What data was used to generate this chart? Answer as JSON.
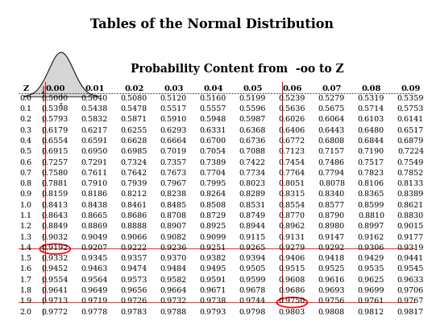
{
  "title": "Tables of the Normal Distribution",
  "subtitle": "Probability Content from  -oo to Z",
  "z_rows": [
    0.0,
    0.1,
    0.2,
    0.3,
    0.4,
    0.5,
    0.6,
    0.7,
    0.8,
    0.9,
    1.0,
    1.1,
    1.2,
    1.3,
    1.4,
    1.5,
    1.6,
    1.7,
    1.8,
    1.9,
    2.0
  ],
  "z_cols": [
    "0.00",
    "0.01",
    "0.02",
    "0.03",
    "0.04",
    "0.05",
    "0.06",
    "0.07",
    "0.08",
    "0.09"
  ],
  "table_values": [
    [
      "0.5000",
      "0.5040",
      "0.5080",
      "0.5120",
      "0.5160",
      "0.5199",
      "0.5239",
      "0.5279",
      "0.5319",
      "0.5359"
    ],
    [
      "0.5398",
      "0.5438",
      "0.5478",
      "0.5517",
      "0.5557",
      "0.5596",
      "0.5636",
      "0.5675",
      "0.5714",
      "0.5753"
    ],
    [
      "0.5793",
      "0.5832",
      "0.5871",
      "0.5910",
      "0.5948",
      "0.5987",
      "0.6026",
      "0.6064",
      "0.6103",
      "0.6141"
    ],
    [
      "0.6179",
      "0.6217",
      "0.6255",
      "0.6293",
      "0.6331",
      "0.6368",
      "0.6406",
      "0.6443",
      "0.6480",
      "0.6517"
    ],
    [
      "0.6554",
      "0.6591",
      "0.6628",
      "0.6664",
      "0.6700",
      "0.6736",
      "0.6772",
      "0.6808",
      "0.6844",
      "0.6879"
    ],
    [
      "0.6915",
      "0.6950",
      "0.6985",
      "0.7019",
      "0.7054",
      "0.7088",
      "0.7123",
      "0.7157",
      "0.7190",
      "0.7224"
    ],
    [
      "0.7257",
      "0.7291",
      "0.7324",
      "0.7357",
      "0.7389",
      "0.7422",
      "0.7454",
      "0.7486",
      "0.7517",
      "0.7549"
    ],
    [
      "0.7580",
      "0.7611",
      "0.7642",
      "0.7673",
      "0.7704",
      "0.7734",
      "0.7764",
      "0.7794",
      "0.7823",
      "0.7852"
    ],
    [
      "0.7881",
      "0.7910",
      "0.7939",
      "0.7967",
      "0.7995",
      "0.8023",
      "0.8051",
      "0.8078",
      "0.8106",
      "0.8133"
    ],
    [
      "0.8159",
      "0.8186",
      "0.8212",
      "0.8238",
      "0.8264",
      "0.8289",
      "0.8315",
      "0.8340",
      "0.8365",
      "0.8389"
    ],
    [
      "0.8413",
      "0.8438",
      "0.8461",
      "0.8485",
      "0.8508",
      "0.8531",
      "0.8554",
      "0.8577",
      "0.8599",
      "0.8621"
    ],
    [
      "0.8643",
      "0.8665",
      "0.8686",
      "0.8708",
      "0.8729",
      "0.8749",
      "0.8770",
      "0.8790",
      "0.8810",
      "0.8830"
    ],
    [
      "0.8849",
      "0.8869",
      "0.8888",
      "0.8907",
      "0.8925",
      "0.8944",
      "0.8962",
      "0.8980",
      "0.8997",
      "0.9015"
    ],
    [
      "0.9032",
      "0.9049",
      "0.9066",
      "0.9082",
      "0.9099",
      "0.9115",
      "0.9131",
      "0.9147",
      "0.9162",
      "0.9177"
    ],
    [
      "0.9192",
      "0.9207",
      "0.9222",
      "0.9236",
      "0.9251",
      "0.9265",
      "0.9279",
      "0.9292",
      "0.9306",
      "0.9319"
    ],
    [
      "0.9332",
      "0.9345",
      "0.9357",
      "0.9370",
      "0.9382",
      "0.9394",
      "0.9406",
      "0.9418",
      "0.9429",
      "0.9441"
    ],
    [
      "0.9452",
      "0.9463",
      "0.9474",
      "0.9484",
      "0.9495",
      "0.9505",
      "0.9515",
      "0.9525",
      "0.9535",
      "0.9545"
    ],
    [
      "0.9554",
      "0.9564",
      "0.9573",
      "0.9582",
      "0.9591",
      "0.9599",
      "0.9608",
      "0.9616",
      "0.9625",
      "0.9633"
    ],
    [
      "0.9641",
      "0.9649",
      "0.9656",
      "0.9664",
      "0.9671",
      "0.9678",
      "0.9686",
      "0.9693",
      "0.9699",
      "0.9706"
    ],
    [
      "0.9713",
      "0.9719",
      "0.9726",
      "0.9732",
      "0.9738",
      "0.9744",
      "0.9750",
      "0.9756",
      "0.9761",
      "0.9767"
    ],
    [
      "0.9772",
      "0.9778",
      "0.9783",
      "0.9788",
      "0.9793",
      "0.9798",
      "0.9803",
      "0.9808",
      "0.9812",
      "0.9817"
    ]
  ],
  "circle_cells": [
    [
      14,
      0
    ],
    [
      19,
      6
    ]
  ],
  "red_vline_cols": [
    0,
    6
  ],
  "red_hline_rows": [
    14,
    19
  ],
  "bg_color": "#ffffff",
  "text_color": "#000000",
  "font_size_title": 11.5,
  "font_size_subtitle": 10,
  "font_size_table": 6.8,
  "font_size_header": 7.2
}
